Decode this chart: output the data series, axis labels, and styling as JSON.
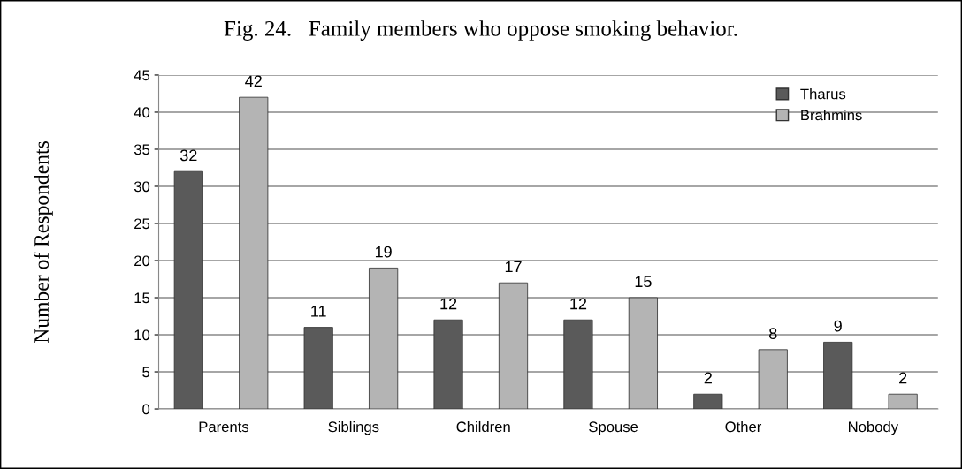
{
  "chart_data": {
    "type": "bar",
    "title": "Fig. 24.   Family members who oppose smoking behavior.",
    "ylabel": "Number of Respondents",
    "categories": [
      "Parents",
      "Siblings",
      "Children",
      "Spouse",
      "Other",
      "Nobody"
    ],
    "series": [
      {
        "name": "Tharus",
        "color": "#5a5a5a",
        "values": [
          32,
          11,
          12,
          12,
          2,
          9
        ]
      },
      {
        "name": "Brahmins",
        "color": "#b4b4b4",
        "values": [
          42,
          19,
          17,
          15,
          8,
          2
        ]
      }
    ],
    "ylim": [
      0,
      45
    ],
    "yticks": [
      0,
      5,
      10,
      15,
      20,
      25,
      30,
      35,
      40,
      45
    ],
    "grid": "y",
    "legend": "top right",
    "data_labels": true
  }
}
